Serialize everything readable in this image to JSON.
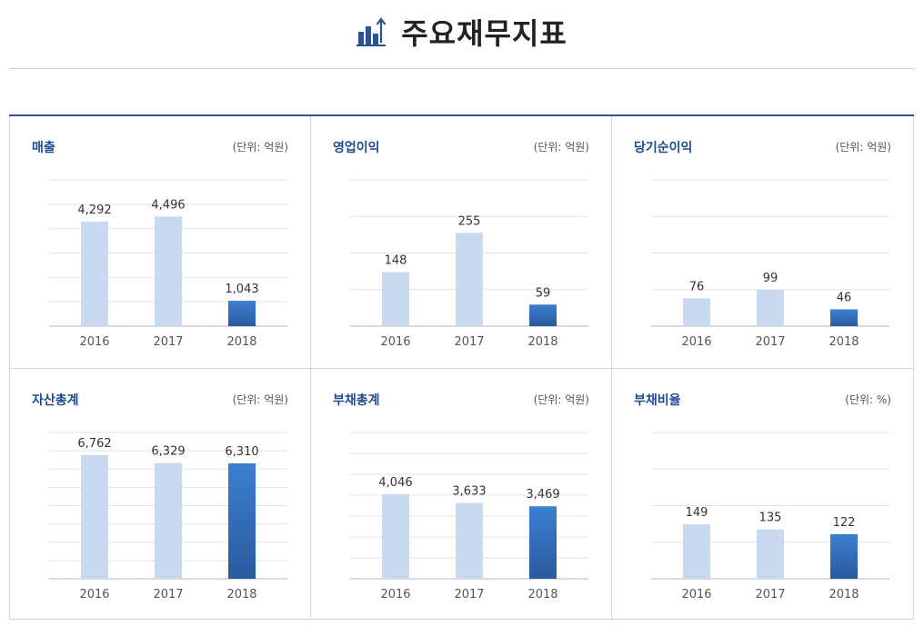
{
  "page": {
    "title": "주요재무지표"
  },
  "colors": {
    "accent": "#2a5396",
    "bar_light": "#c9d9f0",
    "bar_dark_top": "#3c7fd0",
    "bar_dark_bottom": "#2a5a9e"
  },
  "chart_data": [
    {
      "type": "bar",
      "title": "매출",
      "unit": "(단위: 억원)",
      "categories": [
        "2016",
        "2017",
        "2018"
      ],
      "values": [
        4292,
        4496,
        1043
      ],
      "value_labels": [
        "4,292",
        "4,496",
        "1,043"
      ],
      "ylim": [
        0,
        6000
      ],
      "gridlines": 6
    },
    {
      "type": "bar",
      "title": "영업이익",
      "unit": "(단위: 억원)",
      "categories": [
        "2016",
        "2017",
        "2018"
      ],
      "values": [
        148,
        255,
        59
      ],
      "value_labels": [
        "148",
        "255",
        "59"
      ],
      "ylim": [
        0,
        400
      ],
      "gridlines": 4
    },
    {
      "type": "bar",
      "title": "당기순이익",
      "unit": "(단위: 억원)",
      "categories": [
        "2016",
        "2017",
        "2018"
      ],
      "values": [
        76,
        99,
        46
      ],
      "value_labels": [
        "76",
        "99",
        "46"
      ],
      "ylim": [
        0,
        400
      ],
      "gridlines": 4
    },
    {
      "type": "bar",
      "title": "자산총계",
      "unit": "(단위: 억원)",
      "categories": [
        "2016",
        "2017",
        "2018"
      ],
      "values": [
        6762,
        6329,
        6310
      ],
      "value_labels": [
        "6,762",
        "6,329",
        "6,310"
      ],
      "ylim": [
        0,
        8000
      ],
      "gridlines": 8
    },
    {
      "type": "bar",
      "title": "부채총계",
      "unit": "(단위: 억원)",
      "categories": [
        "2016",
        "2017",
        "2018"
      ],
      "values": [
        4046,
        3633,
        3469
      ],
      "value_labels": [
        "4,046",
        "3,633",
        "3,469"
      ],
      "ylim": [
        0,
        7000
      ],
      "gridlines": 7
    },
    {
      "type": "bar",
      "title": "부채비율",
      "unit": "(단위: %)",
      "categories": [
        "2016",
        "2017",
        "2018"
      ],
      "values": [
        149,
        135,
        122
      ],
      "value_labels": [
        "149",
        "135",
        "122"
      ],
      "ylim": [
        0,
        400
      ],
      "gridlines": 4
    }
  ]
}
